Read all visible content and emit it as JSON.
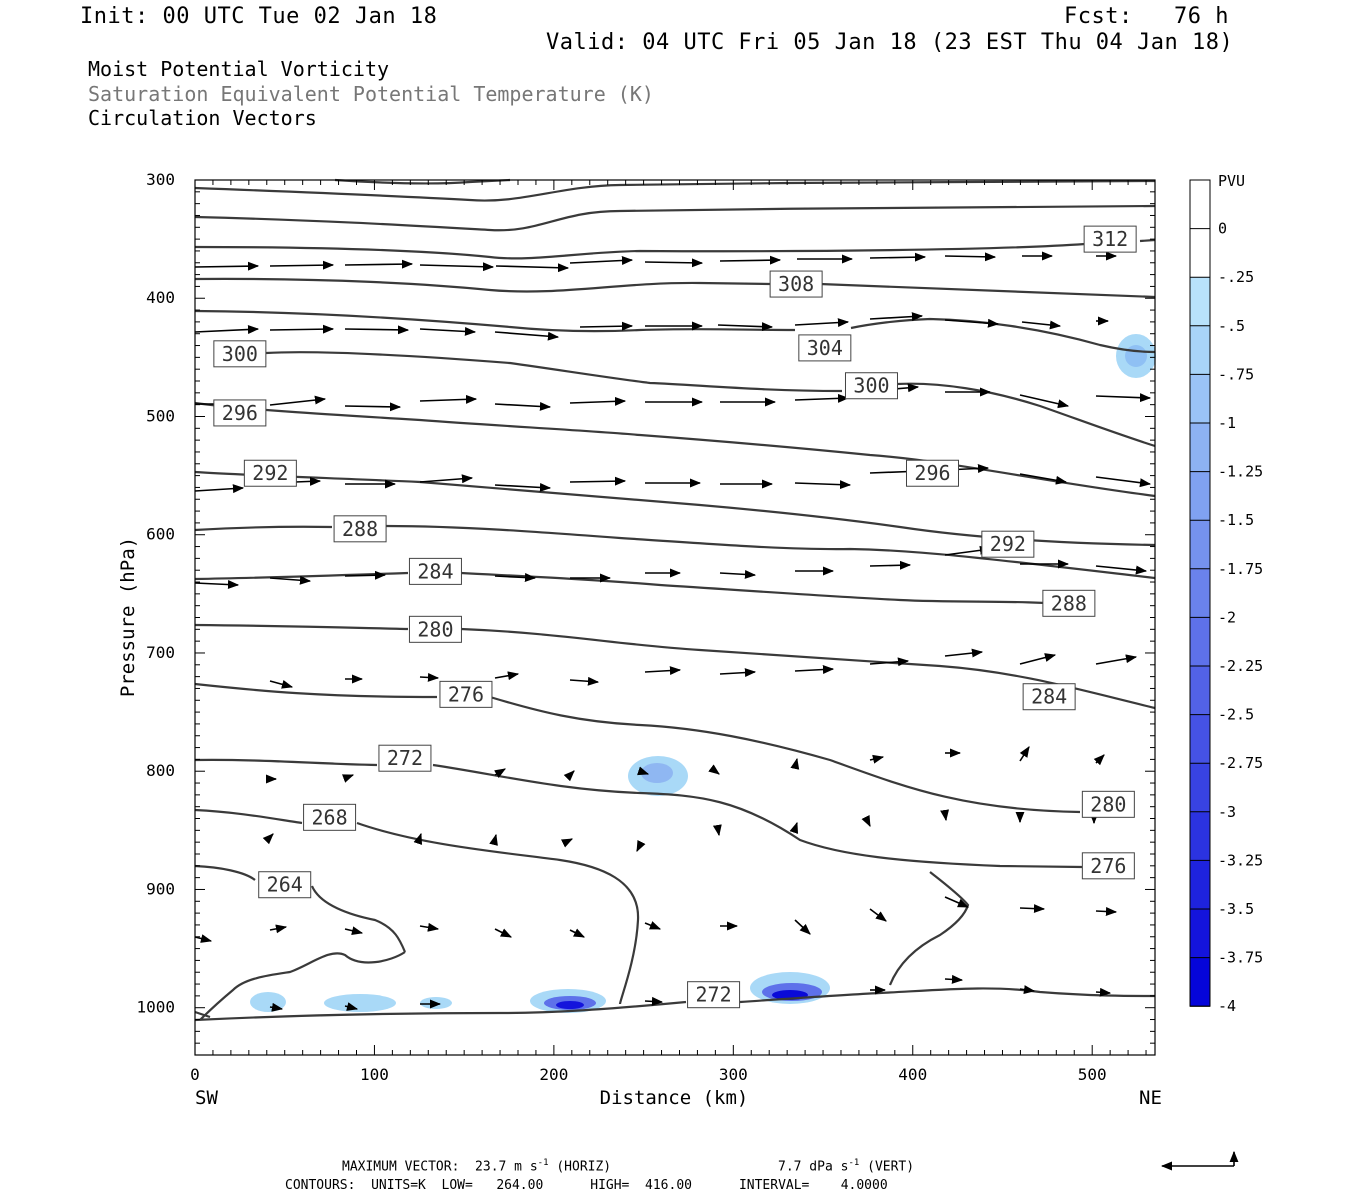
{
  "header": {
    "init": "Init: 00 UTC Tue 02 Jan 18",
    "fcst": "Fcst:   76 h",
    "valid": "Valid: 04 UTC Fri 05 Jan 18 (23 EST Thu 04 Jan 18)"
  },
  "fields": {
    "field1": "Moist Potential Vorticity",
    "field2": "Saturation Equivalent Potential Temperature (K)",
    "field3": "Circulation Vectors"
  },
  "footer": {
    "max_vector": "MAXIMUM VECTOR:  23.7 m s",
    "horiz_tail": "(HORIZ)",
    "vert_value": "7.7 dPa s",
    "vert_tail": "(VERT)",
    "exp": "-1",
    "contours": "CONTOURS:  UNITS=K  LOW=   264.00      HIGH=  416.00      INTERVAL=    4.0000"
  },
  "colors": {
    "contour": "#3a3a3a",
    "pv_light": "#a9d9f7",
    "pv_dark": "#1010f0"
  },
  "chart_data": {
    "type": "cross-section",
    "xlabel": "Distance (km)",
    "ylabel": "Pressure (hPa)",
    "x_ticks": [
      0,
      100,
      200,
      300,
      400,
      500
    ],
    "y_ticks": [
      300,
      400,
      500,
      600,
      700,
      800,
      900,
      1000
    ],
    "xlim": [
      0,
      535
    ],
    "ylim": [
      1040,
      300
    ],
    "x_end_labels": {
      "left": "SW",
      "right": "NE"
    },
    "colorbar": {
      "unit": "PVU",
      "ticks": [
        "0",
        "-.25",
        "-.5",
        "-.75",
        "-1",
        "-1.25",
        "-1.5",
        "-1.75",
        "-2",
        "-2.25",
        "-2.5",
        "-2.75",
        "-3",
        "-3.25",
        "-3.5",
        "-3.75",
        "-4"
      ],
      "colors": [
        "#ffffff",
        "#ffffff",
        "#b8e2fb",
        "#a8d4f8",
        "#9ac3f6",
        "#8db2f3",
        "#80a2f1",
        "#7592ee",
        "#6a82ec",
        "#5e71ea",
        "#5262e7",
        "#4552e5",
        "#3843e3",
        "#2b33e0",
        "#1e23de",
        "#1414dc",
        "#0505da"
      ]
    },
    "contour_labels": [
      {
        "value": "312",
        "x": 510,
        "p": 350
      },
      {
        "value": "308",
        "x": 335,
        "p": 388
      },
      {
        "value": "304",
        "x": 351,
        "p": 442
      },
      {
        "value": "300",
        "x": 25,
        "p": 447
      },
      {
        "value": "300",
        "x": 377,
        "p": 474
      },
      {
        "value": "296",
        "x": 25,
        "p": 497
      },
      {
        "value": "296",
        "x": 411,
        "p": 548
      },
      {
        "value": "292",
        "x": 42,
        "p": 548
      },
      {
        "value": "292",
        "x": 453,
        "p": 608
      },
      {
        "value": "288",
        "x": 92,
        "p": 595
      },
      {
        "value": "288",
        "x": 487,
        "p": 658
      },
      {
        "value": "284",
        "x": 134,
        "p": 631
      },
      {
        "value": "284",
        "x": 476,
        "p": 737
      },
      {
        "value": "280",
        "x": 134,
        "p": 680
      },
      {
        "value": "280",
        "x": 509,
        "p": 828
      },
      {
        "value": "276",
        "x": 151,
        "p": 735
      },
      {
        "value": "276",
        "x": 509,
        "p": 880
      },
      {
        "value": "272",
        "x": 117,
        "p": 789
      },
      {
        "value": "272",
        "x": 289,
        "p": 989
      },
      {
        "value": "268",
        "x": 75,
        "p": 839
      },
      {
        "value": "264",
        "x": 50,
        "p": 896
      }
    ]
  }
}
